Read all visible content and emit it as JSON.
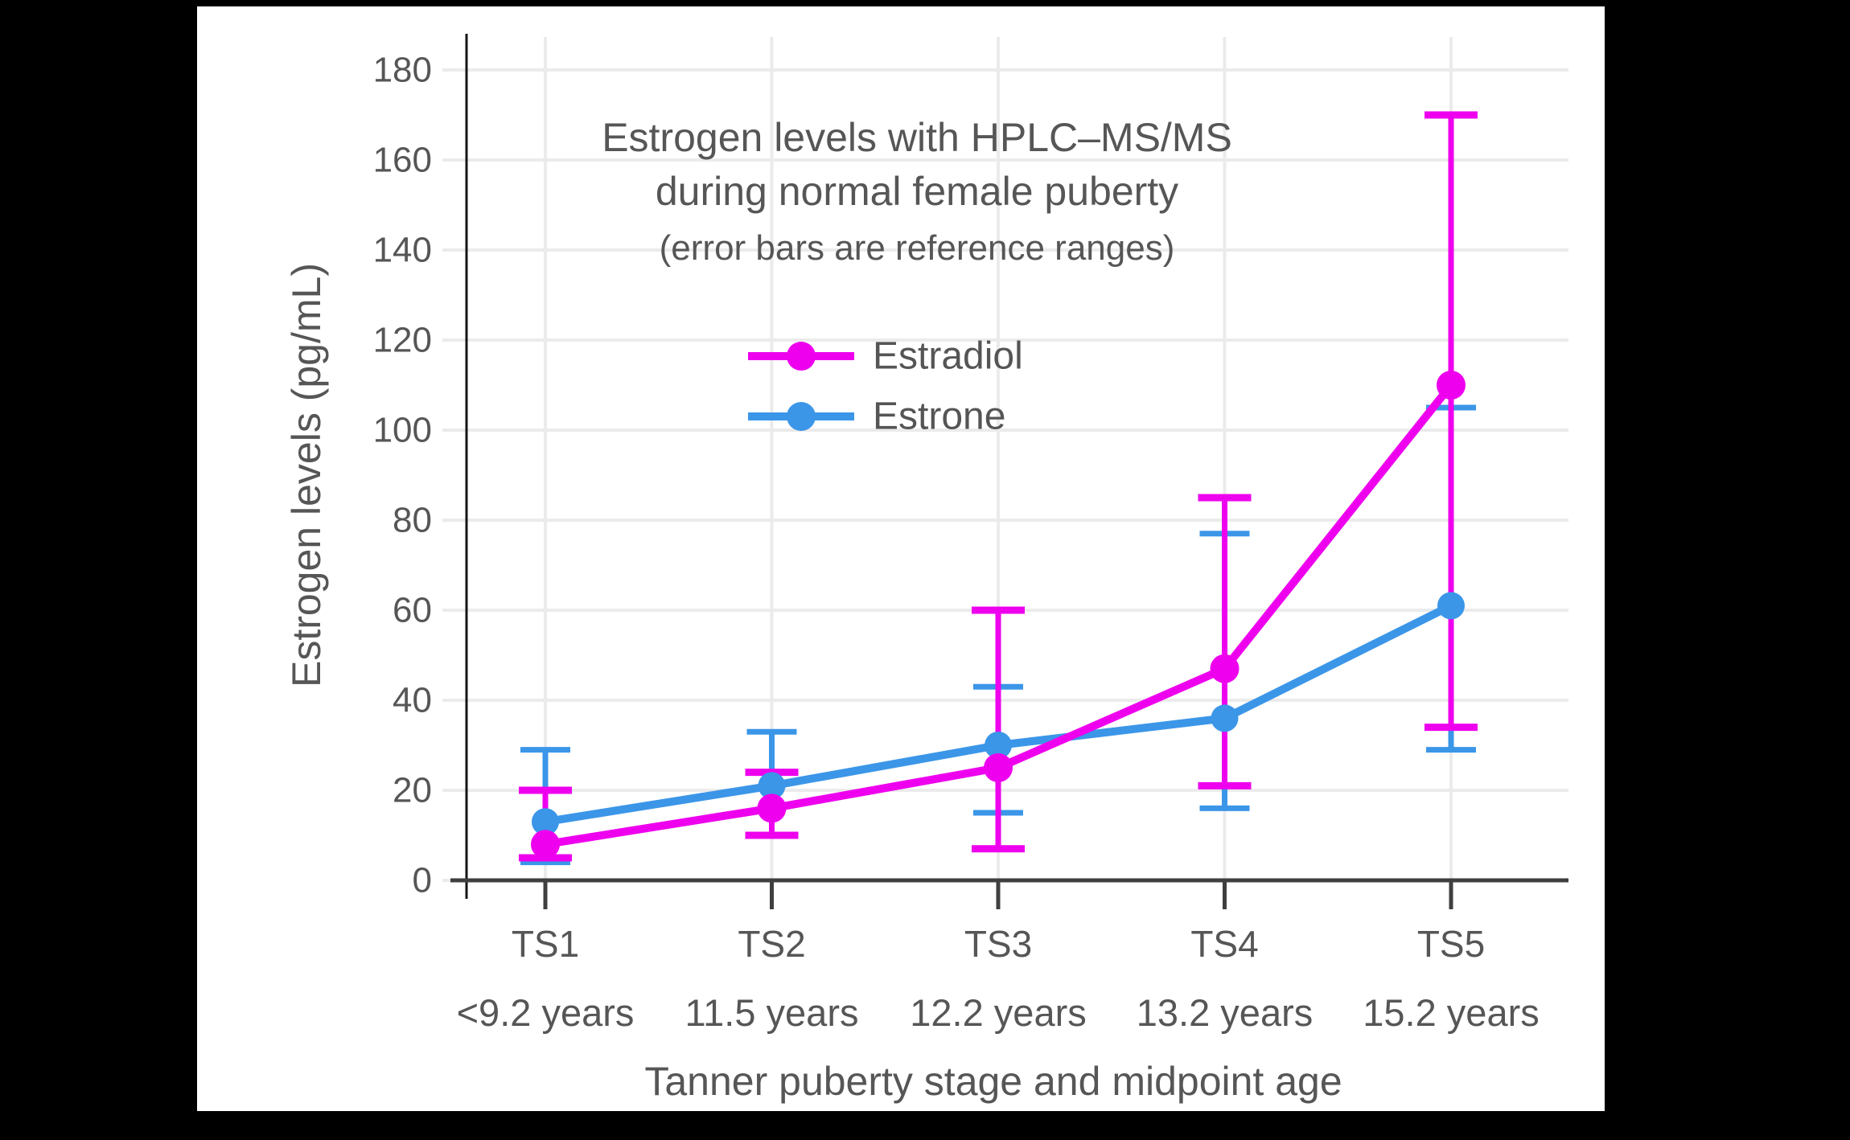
{
  "chart_data": {
    "type": "line",
    "title_lines": [
      "Estrogen levels with HPLC–MS/MS",
      "during normal female puberty"
    ],
    "subtitle": "(error bars are reference ranges)",
    "xlabel": "Tanner puberty stage and midpoint age",
    "ylabel": "Estrogen levels (pg/mL)",
    "categories": [
      "TS1",
      "TS2",
      "TS3",
      "TS4",
      "TS5"
    ],
    "age_labels": [
      "<9.2 years",
      "11.5 years",
      "12.2 years",
      "13.2 years",
      "15.2 years"
    ],
    "ylim": [
      0,
      180
    ],
    "ytick_step": 20,
    "grid": true,
    "legend_position": "upper-center",
    "series": [
      {
        "name": "Estradiol",
        "color": "#EE00EE",
        "values": [
          8,
          16,
          25,
          47,
          110
        ],
        "error_low": [
          5,
          10,
          7,
          21,
          34
        ],
        "error_high": [
          20,
          24,
          60,
          85,
          170
        ]
      },
      {
        "name": "Estrone",
        "color": "#3B96E8",
        "values": [
          13,
          21,
          30,
          36,
          61
        ],
        "error_low": [
          4,
          10,
          15,
          16,
          29
        ],
        "error_high": [
          29,
          33,
          43,
          77,
          105
        ]
      }
    ]
  },
  "colors": {
    "background": "#000000",
    "panel": "#FFFFFF",
    "grid": "#EBEBEB",
    "x_axis": "#3F3F3F",
    "y_spine": "#141414",
    "text": "#565656"
  }
}
